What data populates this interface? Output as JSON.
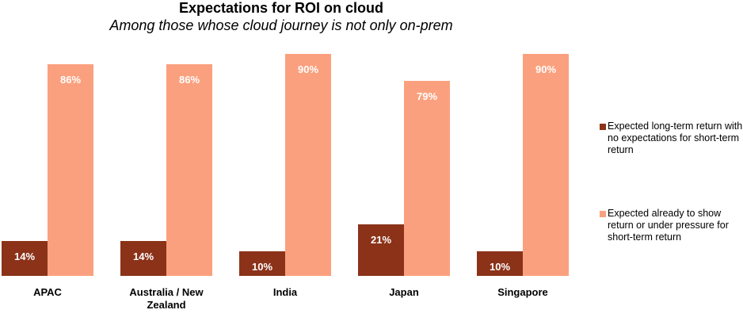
{
  "chart_data": {
    "type": "bar",
    "title": "Expectations for ROI on cloud",
    "subtitle": "Among those whose cloud journey is not only on-prem",
    "categories": [
      "APAC",
      "Australia / New Zealand",
      "India",
      "Japan",
      "Singapore"
    ],
    "series": [
      {
        "name": "Expected long-term return with no expectations for short-term return",
        "color": "#8b3219",
        "values": [
          14,
          14,
          10,
          21,
          10
        ],
        "value_labels": [
          "14%",
          "14%",
          "10%",
          "21%",
          "10%"
        ]
      },
      {
        "name": "Expected already to show return or under pressure for short-term return",
        "color": "#fba07e",
        "values": [
          86,
          86,
          90,
          79,
          90
        ],
        "value_labels": [
          "86%",
          "86%",
          "90%",
          "79%",
          "90%"
        ]
      }
    ]
  }
}
